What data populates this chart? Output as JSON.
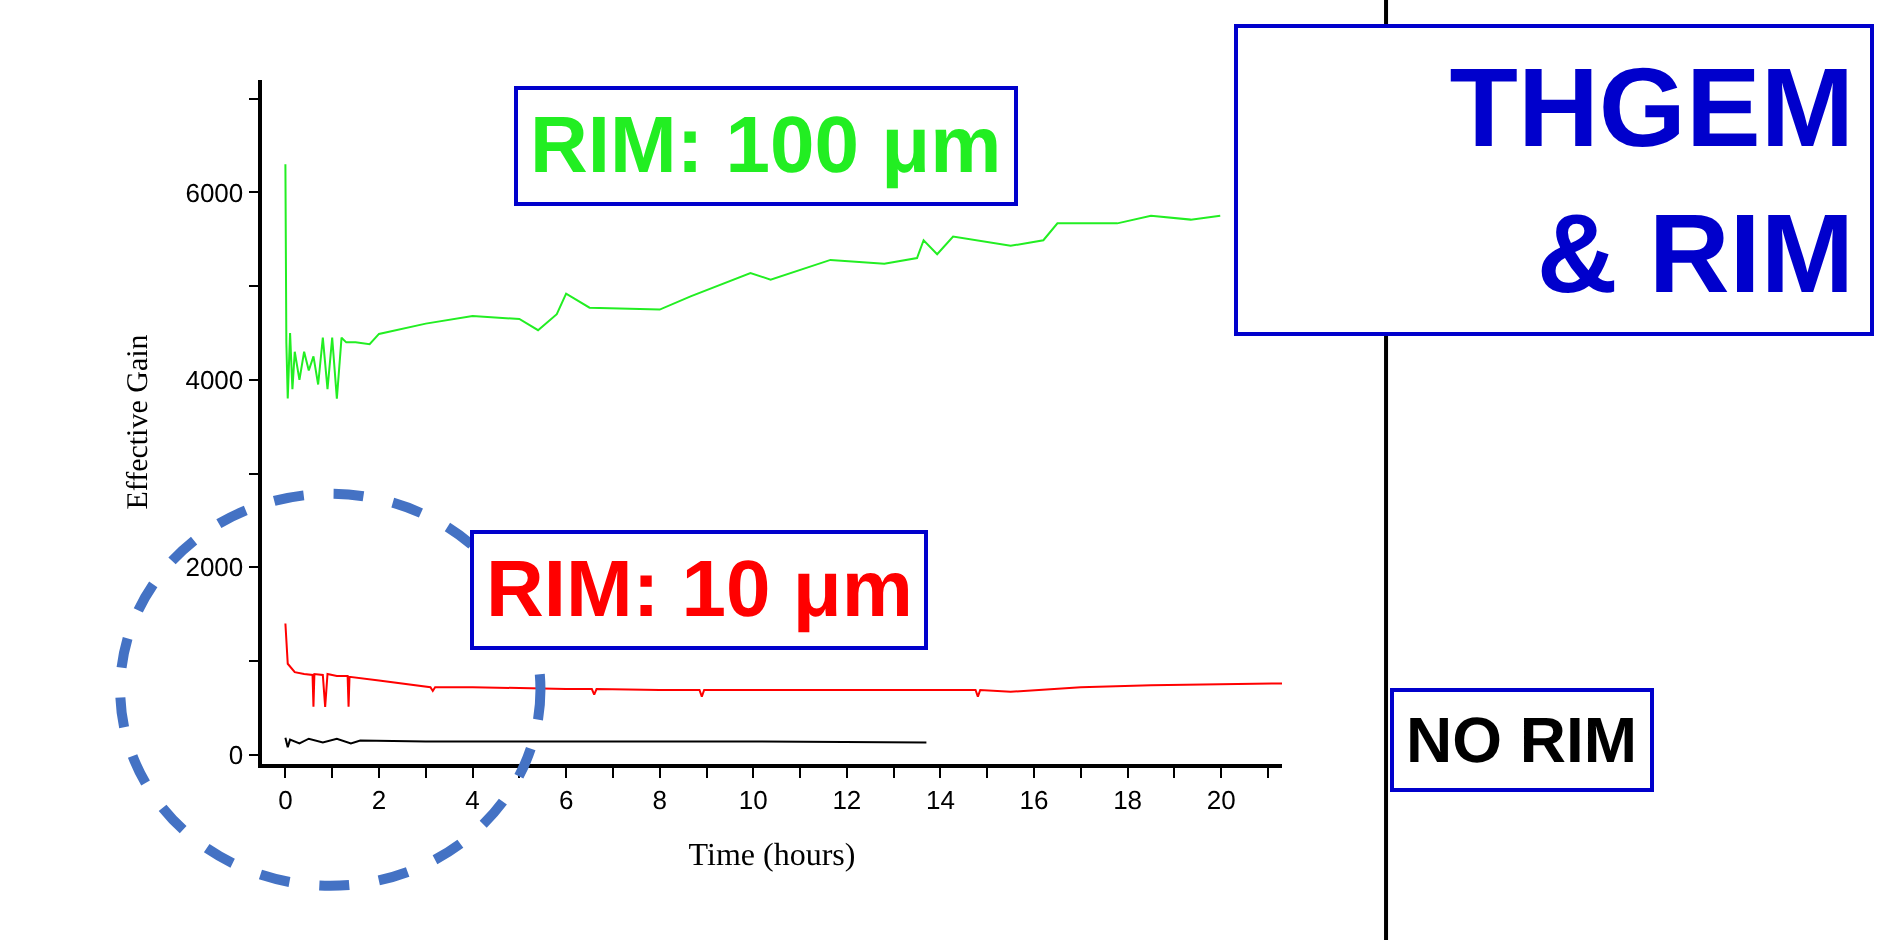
{
  "chart_data": {
    "type": "line",
    "title": "THGEM\n& RIM",
    "xlabel": "Time (hours)",
    "ylabel": "Effective Gain",
    "xlim": [
      -0.5,
      21.3
    ],
    "ylim": [
      -100,
      7200
    ],
    "xticks": [
      0,
      {
        "value": 1,
        "label": null
      },
      2,
      {
        "value": 3,
        "label": null
      },
      4,
      {
        "value": 5,
        "label": null
      },
      6,
      {
        "value": 7,
        "label": null
      },
      8,
      {
        "value": 9,
        "label": null
      },
      10,
      {
        "value": 11,
        "label": null
      },
      12,
      {
        "value": 13,
        "label": null
      },
      14,
      {
        "value": 15,
        "label": null
      },
      16,
      {
        "value": 17,
        "label": null
      },
      18,
      {
        "value": 19,
        "label": null
      },
      20,
      {
        "value": 21,
        "label": null
      }
    ],
    "yticks": [
      0,
      {
        "value": 1000,
        "label": null
      },
      2000,
      {
        "value": 3000,
        "label": null
      },
      4000,
      {
        "value": 5000,
        "label": null
      },
      6000,
      {
        "value": 7000,
        "label": null
      }
    ],
    "marker": "none",
    "line_style": "solid",
    "series": [
      {
        "name": "RIM: 100 μm",
        "color": "#22ee22",
        "x": [
          0,
          0.02,
          0.05,
          0.1,
          0.15,
          0.2,
          0.3,
          0.4,
          0.5,
          0.6,
          0.7,
          0.8,
          0.9,
          1.0,
          1.1,
          1.2,
          1.3,
          1.5,
          1.8,
          2,
          3,
          4,
          5,
          5.4,
          5.8,
          6,
          6.5,
          8,
          8.66,
          9.94,
          10.37,
          11.65,
          12.8,
          13.5,
          13.64,
          13.93,
          14.27,
          15.5,
          16.2,
          16.5,
          17.78,
          18.5,
          19.35,
          19.98
        ],
        "values": [
          6300,
          4400,
          3800,
          4500,
          3900,
          4300,
          4000,
          4300,
          4100,
          4250,
          3950,
          4450,
          3900,
          4450,
          3800,
          4450,
          4400,
          4400,
          4380,
          4490,
          4600,
          4680,
          4650,
          4530,
          4700,
          4920,
          4770,
          4750,
          4890,
          5140,
          5070,
          5280,
          5240,
          5300,
          5490,
          5340,
          5530,
          5430,
          5490,
          5670,
          5670,
          5750,
          5710,
          5750
        ]
      },
      {
        "name": "RIM: 10 μm",
        "color": "#ff0000",
        "x": [
          0,
          0.05,
          0.2,
          0.4,
          0.58,
          0.6,
          0.62,
          0.8,
          0.85,
          0.9,
          1.1,
          1.33,
          1.35,
          1.37,
          2,
          3.1,
          3.15,
          3.2,
          4,
          6,
          6.55,
          6.6,
          6.65,
          8,
          8.85,
          8.9,
          8.95,
          10,
          12,
          14,
          14.75,
          14.8,
          14.85,
          15.5,
          17,
          18.5,
          21.3
        ],
        "values": [
          1400,
          970,
          880,
          860,
          850,
          510,
          860,
          850,
          510,
          860,
          840,
          840,
          510,
          830,
          790,
          720,
          680,
          720,
          720,
          700,
          700,
          640,
          700,
          690,
          690,
          620,
          690,
          690,
          690,
          690,
          690,
          620,
          690,
          670,
          720,
          740,
          760
        ]
      },
      {
        "name": "NO RIM",
        "color": "#000000",
        "x": [
          0,
          0.05,
          0.1,
          0.3,
          0.5,
          0.8,
          1.1,
          1.4,
          1.6,
          3,
          6,
          10,
          13.7
        ],
        "values": [
          180,
          80,
          160,
          120,
          170,
          130,
          170,
          120,
          150,
          140,
          140,
          140,
          130
        ]
      }
    ]
  }
}
